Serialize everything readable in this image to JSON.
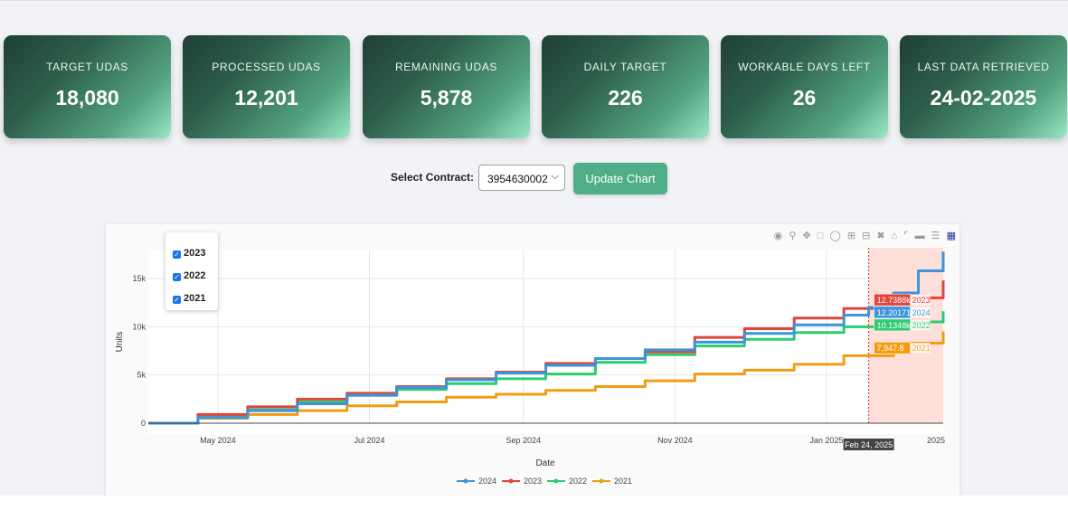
{
  "cards": [
    {
      "label": "TARGET UDAS",
      "value": "18,080"
    },
    {
      "label": "PROCESSED UDAS",
      "value": "12,201"
    },
    {
      "label": "REMAINING UDAS",
      "value": "5,878"
    },
    {
      "label": "DAILY TARGET",
      "value": "226"
    },
    {
      "label": "WORKABLE DAYS LEFT",
      "value": "26"
    },
    {
      "label": "LAST DATA RETRIEVED",
      "value": "24-02-2025"
    }
  ],
  "controls": {
    "select_label": "Select Contract:",
    "contract_value": "3954630002",
    "update_button": "Update Chart"
  },
  "year_toggles": [
    {
      "label": "2023",
      "checked": true
    },
    {
      "label": "2022",
      "checked": true
    },
    {
      "label": "2021",
      "checked": true
    }
  ],
  "chart_data": {
    "type": "line",
    "title": "",
    "xlabel": "Date",
    "ylabel": "Units",
    "x_tick_labels": [
      "May 2024",
      "Jul 2024",
      "Sep 2024",
      "Nov 2024",
      "Jan 2025",
      "2025"
    ],
    "y_tick_labels": [
      "0",
      "5k",
      "10k",
      "15k"
    ],
    "ylim": [
      0,
      18000
    ],
    "x_range_days": [
      0,
      320
    ],
    "x_tick_days": [
      28,
      89,
      151,
      212,
      273,
      334
    ],
    "series": [
      {
        "name": "2024",
        "color": "#3b94dc",
        "x": [
          0,
          20,
          40,
          60,
          80,
          100,
          120,
          140,
          160,
          180,
          200,
          220,
          240,
          260,
          280,
          290,
          300,
          310,
          320
        ],
        "y": [
          0,
          600,
          1300,
          2000,
          2900,
          3700,
          4500,
          5200,
          6000,
          6700,
          7600,
          8400,
          9300,
          10200,
          11200,
          12000,
          13500,
          15800,
          17800
        ]
      },
      {
        "name": "2023",
        "color": "#e0453c",
        "x": [
          0,
          20,
          40,
          60,
          80,
          100,
          120,
          140,
          160,
          180,
          200,
          220,
          240,
          260,
          280,
          300,
          320
        ],
        "y": [
          0,
          900,
          1700,
          2500,
          3100,
          3800,
          4600,
          5300,
          6200,
          6700,
          7400,
          8900,
          9800,
          10900,
          11900,
          13000,
          14800
        ]
      },
      {
        "name": "2022",
        "color": "#2ecc71",
        "x": [
          0,
          20,
          40,
          60,
          80,
          100,
          120,
          140,
          160,
          180,
          200,
          220,
          240,
          260,
          280,
          300,
          320
        ],
        "y": [
          0,
          700,
          1400,
          2200,
          2900,
          3500,
          4100,
          4600,
          5100,
          6300,
          7100,
          8000,
          8700,
          9400,
          10000,
          10500,
          11600
        ]
      },
      {
        "name": "2021",
        "color": "#f39c12",
        "x": [
          0,
          20,
          40,
          60,
          80,
          100,
          120,
          140,
          160,
          180,
          200,
          220,
          240,
          260,
          280,
          300,
          320
        ],
        "y": [
          0,
          500,
          900,
          1300,
          1800,
          2200,
          2700,
          3000,
          3400,
          3800,
          4400,
          5100,
          5500,
          6100,
          7000,
          8300,
          9500
        ]
      }
    ],
    "hover": {
      "date_label": "Feb 24, 2025",
      "x": 290,
      "labels": [
        {
          "value": "12.7388k",
          "name": "2023",
          "color": "#e0453c"
        },
        {
          "value": "12.20171k",
          "name": "2024",
          "color": "#3b94dc"
        },
        {
          "value": "10.1348k",
          "name": "2022",
          "color": "#2ecc71"
        },
        {
          "value": "7,947.8",
          "name": "2021",
          "color": "#f39c12"
        }
      ]
    },
    "legend": [
      "2024",
      "2023",
      "2022",
      "2021"
    ]
  },
  "modebar_icons": [
    "camera-icon",
    "zoom-icon",
    "pan-icon",
    "box-select-icon",
    "lasso-icon",
    "zoom-in-icon",
    "zoom-out-icon",
    "autoscale-icon",
    "home-icon",
    "spike-icon",
    "hover-closest-icon",
    "hover-compare-icon",
    "plotly-logo-icon"
  ]
}
